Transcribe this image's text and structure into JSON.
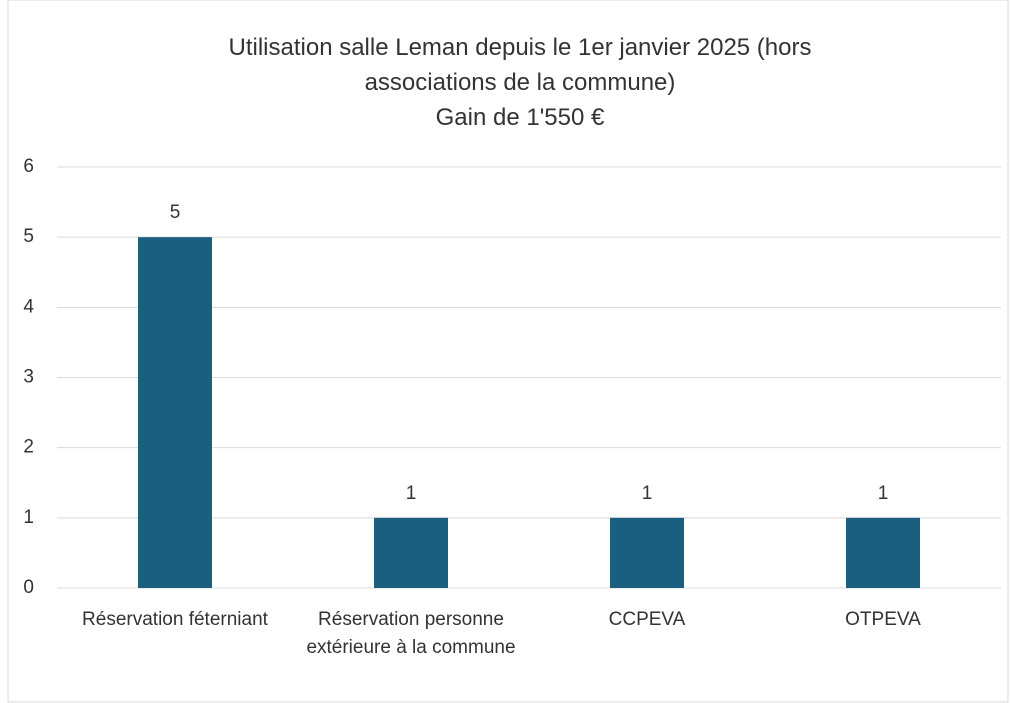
{
  "chart_data": {
    "type": "bar",
    "title": "Utilisation salle Leman depuis le 1er janvier 2025 (hors associations de la commune)",
    "subtitle": "Gain de 1'550 €",
    "categories": [
      "Réservation féterniant",
      "Réservation personne extérieure à la commune",
      "CCPEVA",
      "OTPEVA"
    ],
    "values": [
      5,
      1,
      1,
      1
    ],
    "color": "#1a5e80",
    "ylim": [
      0,
      6
    ],
    "yticks": [
      0,
      1,
      2,
      3,
      4,
      5,
      6
    ],
    "grid": true,
    "data_labels": true
  }
}
